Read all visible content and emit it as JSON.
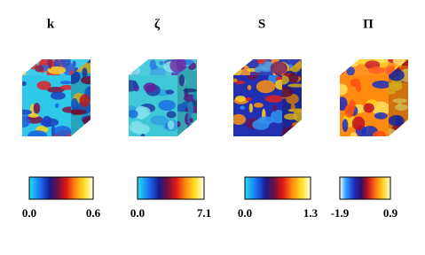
{
  "panels": [
    {
      "title": "k",
      "min_label": "0.0",
      "max_label": "0.6"
    },
    {
      "title": "ζ",
      "min_label": "0.0",
      "max_label": "7.1"
    },
    {
      "title": "S",
      "min_label": "0.0",
      "max_label": "1.3"
    },
    {
      "title": "Π",
      "min_label": "-1.9",
      "max_label": "0.9"
    }
  ]
}
